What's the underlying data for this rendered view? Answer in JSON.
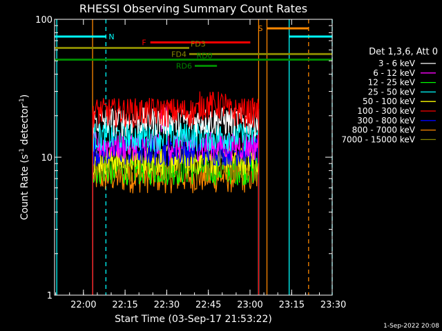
{
  "chart_data": {
    "type": "line",
    "title": "RHESSI Observing Summary Count Rates",
    "xlabel": "Start Time (03-Sep-17 21:53:22)",
    "ylabel_main": "Count Rate (s",
    "ylabel_sup1": "-1",
    "ylabel_mid": " detector",
    "ylabel_sup2": "-1",
    "ylabel_end": ")",
    "xlim": [
      0,
      100
    ],
    "ylim_log10": [
      0,
      2
    ],
    "x_ticks": [
      {
        "v": 10.4,
        "label": "22:00"
      },
      {
        "v": 25.4,
        "label": "22:15"
      },
      {
        "v": 40.4,
        "label": "22:30"
      },
      {
        "v": 55.4,
        "label": "22:45"
      },
      {
        "v": 70.4,
        "label": "23:00"
      },
      {
        "v": 85.4,
        "label": "23:15"
      },
      {
        "v": 100.4,
        "label": "23:30"
      }
    ],
    "y_ticks": [
      {
        "v": 1,
        "label": "1"
      },
      {
        "v": 10,
        "label": "10"
      },
      {
        "v": 100,
        "label": "100"
      }
    ],
    "legend_title": "Det 1,3,6, Att 0",
    "series": [
      {
        "name": "3 - 6 keV",
        "color": "#ffffff",
        "base": 18
      },
      {
        "name": "6 - 12 keV",
        "color": "#ff00ff",
        "base": 12
      },
      {
        "name": "12 - 25 keV",
        "color": "#00ff00",
        "base": 8
      },
      {
        "name": "25 - 50 keV",
        "color": "#00ffff",
        "base": 14
      },
      {
        "name": "50 - 100 keV",
        "color": "#ffff00",
        "base": 9.5
      },
      {
        "name": "100 - 300 keV",
        "color": "#ff0000",
        "base": 21
      },
      {
        "name": "300 - 800 keV",
        "color": "#0000ff",
        "base": 11
      },
      {
        "name": "800 - 7000 keV",
        "color": "#ff8800",
        "base": 7
      },
      {
        "name": "7000 - 15000 keV",
        "color": "#888800",
        "base": 8.5
      }
    ],
    "data_window": [
      13.7,
      73.5
    ],
    "annotations": [
      {
        "label": "N",
        "color": "#00ffff",
        "x1": 0,
        "x2": 18.5,
        "level": 75
      },
      {
        "label": "N",
        "color": "#00ffff",
        "x1": 84.5,
        "x2": 100,
        "level": 75
      },
      {
        "label": "S",
        "color": "#ff8800",
        "x1": 76.5,
        "x2": 91.5,
        "level": 86
      },
      {
        "label": "F",
        "color": "#ff0000",
        "x1": 34.5,
        "x2": 70.5,
        "level": 68
      },
      {
        "label": "FD3",
        "color": "#888800",
        "x1": 0,
        "x2": 48.5,
        "level": 62
      },
      {
        "label": "FD4",
        "color": "#888800",
        "x1": 48.5,
        "x2": 100,
        "level": 56
      },
      {
        "label": "RD0",
        "color": "#008800",
        "x1": 0,
        "x2": 100,
        "level": 51
      },
      {
        "label": "RD6",
        "color": "#008800",
        "x1": 50.5,
        "x2": 58.5,
        "level": 46
      }
    ],
    "vlines": [
      {
        "x": 0.8,
        "color": "#00ffff",
        "dash": false
      },
      {
        "x": 18.5,
        "color": "#00ffff",
        "dash": true
      },
      {
        "x": 13.7,
        "color": "#ff8800",
        "dash": false
      },
      {
        "x": 73.5,
        "color": "#ff8800",
        "dash": false
      },
      {
        "x": 76.5,
        "color": "#ff8800",
        "dash": false
      },
      {
        "x": 91.5,
        "color": "#ff8800",
        "dash": true
      },
      {
        "x": 84.5,
        "color": "#00ffff",
        "dash": false
      },
      {
        "x": 100,
        "color": "#00ffff",
        "dash": true
      }
    ],
    "footer_date": "1-Sep-2022 20:08"
  }
}
